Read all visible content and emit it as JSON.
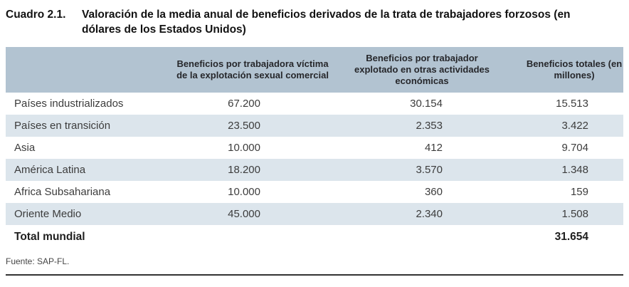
{
  "document": {
    "label": "Cuadro 2.1.",
    "title": "Valoración de la media anual de beneficios derivados de la trata de trabajadores forzosos (en dólares de los Estados Unidos)",
    "source": "Fuente: SAP-FL."
  },
  "table": {
    "columns": {
      "region": "",
      "sexual": "Beneficios por trabajadora víctima de la explotación sexual comercial",
      "other": "Beneficios por trabajador explotado en otras actividades económicas",
      "total": "Beneficios totales (en millones)"
    },
    "rows": [
      {
        "region": "Países industrializados",
        "sexual": "67.200",
        "other": "30.154",
        "total": "15.513"
      },
      {
        "region": "Países en transición",
        "sexual": "23.500",
        "other": "2.353",
        "total": "3.422"
      },
      {
        "region": "Asia",
        "sexual": "10.000",
        "other": "412",
        "total": "9.704"
      },
      {
        "region": "América Latina",
        "sexual": "18.200",
        "other": "3.570",
        "total": "1.348"
      },
      {
        "region": "Africa Subsahariana",
        "sexual": "10.000",
        "other": "360",
        "total": "159"
      },
      {
        "region": "Oriente Medio",
        "sexual": "45.000",
        "other": "2.340",
        "total": "1.508"
      }
    ],
    "total_row": {
      "region": "Total mundial",
      "total": "31.654"
    }
  },
  "colors": {
    "header_bg": "#b2c3d1",
    "row_alt_bg": "#dce5ec",
    "body_text": "#3c3c3c",
    "heading_text": "#121212"
  }
}
